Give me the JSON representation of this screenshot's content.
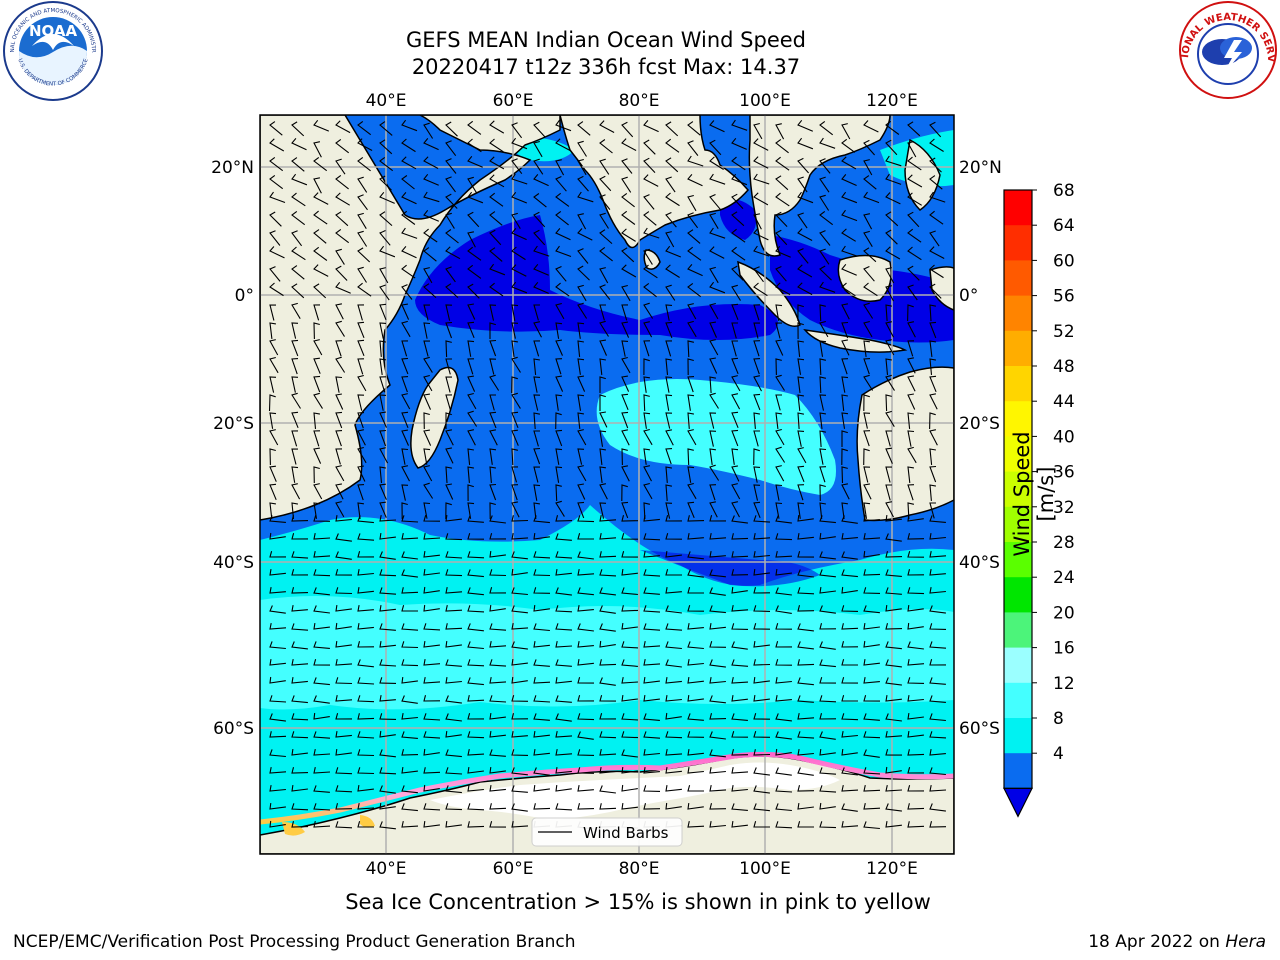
{
  "header": {
    "title_line1": "GEFS MEAN Indian Ocean Wind Speed",
    "title_line2": "20220417 t12z 336h fcst   Max: 14.37"
  },
  "logos": {
    "left": "noaa-logo",
    "right": "nws-logo",
    "noaa_text": "NOAA",
    "noaa_ring_top": "NATIONAL OCEANIC AND ATMOSPHERIC ADMINISTRATION",
    "noaa_ring_bottom": "U.S. DEPARTMENT OF COMMERCE",
    "nws_ring": "NATIONAL WEATHER SERVICE"
  },
  "map": {
    "top_lon_labels": [
      "40°E",
      "60°E",
      "80°E",
      "100°E",
      "120°E"
    ],
    "bottom_lon_labels": [
      "40°E",
      "60°E",
      "80°E",
      "100°E",
      "120°E"
    ],
    "left_lat_labels": [
      "20°N",
      "0°",
      "20°S",
      "40°S",
      "60°S"
    ],
    "right_lat_labels": [
      "20°N",
      "0°",
      "20°S",
      "40°S",
      "60°S"
    ],
    "legend_label": "Wind Barbs",
    "colors": {
      "land": "#efefdf",
      "ocean_deep_blue": "#0000e6",
      "ocean_blue": "#0a6cf0",
      "ocean_cyan": "#00f2f2",
      "ocean_light_cyan": "#44ffff",
      "ice_white": "#ffffff",
      "ice_pink": "#ff66cc",
      "ice_yellow": "#ffcc44"
    }
  },
  "colorbar": {
    "label": "Wind Speed [m/s]",
    "ticks": [
      "68",
      "64",
      "60",
      "56",
      "52",
      "48",
      "44",
      "40",
      "36",
      "32",
      "28",
      "24",
      "20",
      "16",
      "12",
      "8",
      "4"
    ],
    "colors": [
      "#ff0000",
      "#ff2e00",
      "#ff5a00",
      "#ff8400",
      "#ffad00",
      "#ffd500",
      "#fff600",
      "#f0ff00",
      "#cbff00",
      "#a0ff00",
      "#5aff00",
      "#00e600",
      "#4cf47a",
      "#9bffff",
      "#44ffff",
      "#00f2f2",
      "#0a6cf0"
    ],
    "extend_color": "#0000e6"
  },
  "notes": {
    "sea_ice": "Sea Ice Concentration > 15% is shown in pink to yellow"
  },
  "footer": {
    "left": "NCEP/EMC/Verification Post Processing Product Generation Branch",
    "right_date": "18 Apr 2022 on",
    "right_host": "Hera"
  }
}
